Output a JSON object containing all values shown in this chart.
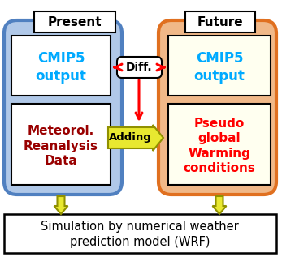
{
  "bg_color": "#ffffff",
  "present_box_color": "#b0c8e8",
  "future_box_color": "#f0b888",
  "cmip5_box_color": "#ffffff",
  "reanalysis_box_color": "#ffffff",
  "pseudo_box_color": "#fffff0",
  "bottom_box_color": "#ffffff",
  "diff_box_color": "#ffffff",
  "present_label": "Present",
  "future_label": "Future",
  "cmip5_left_text": "CMIP5\noutput",
  "cmip5_right_text": "CMIP5\noutput",
  "reanalysis_text": "Meteorol.\nReanalysis\nData",
  "pseudo_text": "Pseudo\nglobal\nWarming\nconditions",
  "diff_text": "Diff.",
  "adding_text": "Adding",
  "bottom_text": "Simulation by numerical weather\nprediction model (WRF)",
  "cmip5_text_color": "#00aaff",
  "reanalysis_text_color": "#990000",
  "pseudo_text_color": "#ff0000",
  "bottom_text_color": "#000000",
  "present_border_color": "#5080c0",
  "future_border_color": "#e07020",
  "bottom_border_color": "#000000",
  "red_arrow_color": "#ff0000",
  "yellow_fill": "#e8e830",
  "yellow_edge": "#909000"
}
